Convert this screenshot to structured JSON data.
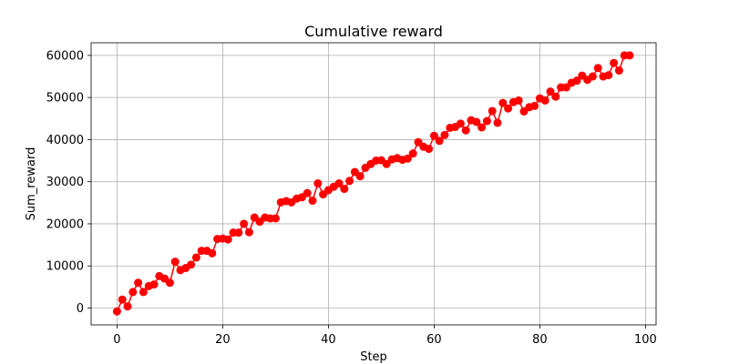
{
  "chart_data": {
    "type": "line",
    "title": "Cumulative reward",
    "xlabel": "Step",
    "ylabel": "Sum_reward",
    "xlim": [
      -4.9,
      102
    ],
    "ylim": [
      -4000,
      63000
    ],
    "xticks": [
      0,
      20,
      40,
      60,
      80,
      100
    ],
    "yticks": [
      0,
      10000,
      20000,
      30000,
      40000,
      50000,
      60000
    ],
    "grid": true,
    "marker": "o",
    "series": [
      {
        "color": "#ff0000",
        "x": [
          0,
          1,
          2,
          3,
          4,
          5,
          6,
          7,
          8,
          9,
          10,
          11,
          12,
          13,
          14,
          15,
          16,
          17,
          18,
          19,
          20,
          21,
          22,
          23,
          24,
          25,
          26,
          27,
          28,
          29,
          30,
          31,
          32,
          33,
          34,
          35,
          36,
          37,
          38,
          39,
          40,
          41,
          42,
          43,
          44,
          45,
          46,
          47,
          48,
          49,
          50,
          51,
          52,
          53,
          54,
          55,
          56,
          57,
          58,
          59,
          60,
          61,
          62,
          63,
          64,
          65,
          66,
          67,
          68,
          69,
          70,
          71,
          72,
          73,
          74,
          75,
          76,
          77,
          78,
          79,
          80,
          81,
          82,
          83,
          84,
          85,
          86,
          87,
          88,
          89,
          90,
          91,
          92,
          93,
          94,
          95,
          96,
          97
        ],
        "y": [
          -800,
          2000,
          400,
          3800,
          6000,
          3800,
          5200,
          5600,
          7600,
          7000,
          6000,
          11000,
          9000,
          9500,
          10300,
          12000,
          13600,
          13600,
          13000,
          16400,
          16500,
          16300,
          17900,
          17900,
          20000,
          18000,
          21500,
          20500,
          21500,
          21300,
          21300,
          25100,
          25400,
          25100,
          26000,
          26300,
          27300,
          25500,
          29600,
          27000,
          28000,
          28800,
          29600,
          28300,
          30200,
          32300,
          31300,
          33300,
          34200,
          35000,
          35100,
          34200,
          35300,
          35600,
          35200,
          35500,
          36700,
          39400,
          38300,
          37800,
          40900,
          39700,
          41100,
          42800,
          43000,
          43800,
          42200,
          44600,
          44200,
          42900,
          44400,
          46800,
          44000,
          48700,
          47400,
          48900,
          49300,
          46700,
          47700,
          48000,
          49800,
          49300,
          51400,
          50200,
          52400,
          52400,
          53500,
          54000,
          55200,
          54200,
          55000,
          57000,
          55000,
          55300,
          58200,
          56400,
          60000,
          60000
        ]
      }
    ]
  }
}
